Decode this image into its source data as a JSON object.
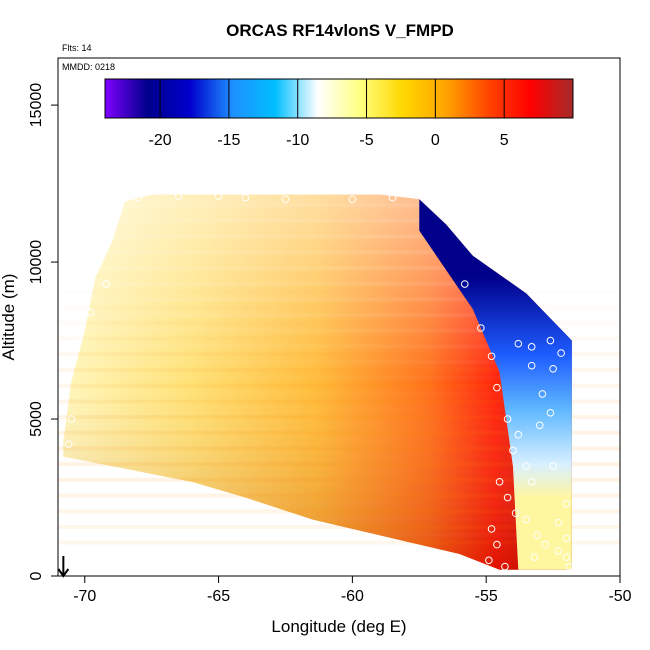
{
  "chart_data": {
    "type": "heatmap",
    "title": "ORCAS RF14vlonS V_FMPD",
    "annotations": {
      "flights": "Flts: 14",
      "date": "MMDD: 0218"
    },
    "xlabel": "Longitude (deg E)",
    "ylabel": "Altitude (m)",
    "xlim": [
      -71,
      -50
    ],
    "ylim": [
      0,
      16500
    ],
    "x_ticks": [
      -70,
      -65,
      -60,
      -55,
      -50
    ],
    "y_ticks": [
      0,
      5000,
      10000,
      15000
    ],
    "colorbar": {
      "range": [
        -24,
        10
      ],
      "ticks": [
        -20,
        -15,
        -10,
        -5,
        0,
        5
      ],
      "colors": [
        "#7f00ff",
        "#00008b",
        "#0000cd",
        "#1e90ff",
        "#00bfff",
        "#ffffff",
        "#ffff80",
        "#ffd700",
        "#ffa500",
        "#ff4500",
        "#ff0000",
        "#a52a2a"
      ]
    },
    "grid": false,
    "data_region": {
      "top_boundary": [
        [
          -68.2,
          12000
        ],
        [
          -67.5,
          12150
        ],
        [
          -59,
          12150
        ],
        [
          -57.5,
          12000
        ],
        [
          -56.5,
          11200
        ],
        [
          -55.5,
          10200
        ],
        [
          -53.5,
          9000
        ],
        [
          -51.8,
          7500
        ]
      ],
      "bottom_boundary": [
        [
          -70.8,
          3800
        ],
        [
          -69,
          3500
        ],
        [
          -66,
          3000
        ],
        [
          -64,
          2500
        ],
        [
          -61.5,
          1800
        ],
        [
          -58,
          1100
        ],
        [
          -56,
          700
        ],
        [
          -54.5,
          200
        ],
        [
          -51.8,
          200
        ]
      ],
      "cold_front_boundary": [
        [
          -57.5,
          11000
        ],
        [
          -55.5,
          8500
        ],
        [
          -54.5,
          6500
        ],
        [
          -54,
          3500
        ],
        [
          -53.8,
          200
        ]
      ]
    },
    "observation_points": [
      {
        "lon": -68.0,
        "alt": 12050
      },
      {
        "lon": -66.5,
        "alt": 12100
      },
      {
        "lon": -65.0,
        "alt": 12100
      },
      {
        "lon": -64.0,
        "alt": 12050
      },
      {
        "lon": -62.5,
        "alt": 12000
      },
      {
        "lon": -60.0,
        "alt": 12000
      },
      {
        "lon": -58.5,
        "alt": 12050
      },
      {
        "lon": -69.2,
        "alt": 9300
      },
      {
        "lon": -69.8,
        "alt": 8400
      },
      {
        "lon": -70.2,
        "alt": 7600
      },
      {
        "lon": -70.5,
        "alt": 5000
      },
      {
        "lon": -70.6,
        "alt": 4200
      },
      {
        "lon": -55.8,
        "alt": 9300
      },
      {
        "lon": -55.2,
        "alt": 7900
      },
      {
        "lon": -54.8,
        "alt": 7000
      },
      {
        "lon": -54.6,
        "alt": 6000
      },
      {
        "lon": -54.2,
        "alt": 5000
      },
      {
        "lon": -53.8,
        "alt": 4500
      },
      {
        "lon": -54.0,
        "alt": 4000
      },
      {
        "lon": -53.5,
        "alt": 3500
      },
      {
        "lon": -53.3,
        "alt": 3000
      },
      {
        "lon": -54.5,
        "alt": 3000
      },
      {
        "lon": -54.2,
        "alt": 2500
      },
      {
        "lon": -53.9,
        "alt": 2000
      },
      {
        "lon": -53.5,
        "alt": 1800
      },
      {
        "lon": -53.1,
        "alt": 1300
      },
      {
        "lon": -52.8,
        "alt": 1000
      },
      {
        "lon": -52.3,
        "alt": 800
      },
      {
        "lon": -52.0,
        "alt": 2300
      },
      {
        "lon": -52.3,
        "alt": 1700
      },
      {
        "lon": -52.0,
        "alt": 1200
      },
      {
        "lon": -54.8,
        "alt": 1500
      },
      {
        "lon": -54.6,
        "alt": 1000
      },
      {
        "lon": -54.9,
        "alt": 500
      },
      {
        "lon": -54.3,
        "alt": 300
      },
      {
        "lon": -53.2,
        "alt": 600
      },
      {
        "lon": -53.0,
        "alt": 4800
      },
      {
        "lon": -52.6,
        "alt": 5200
      },
      {
        "lon": -52.9,
        "alt": 5800
      },
      {
        "lon": -52.5,
        "alt": 6600
      },
      {
        "lon": -52.2,
        "alt": 7100
      },
      {
        "lon": -52.6,
        "alt": 7500
      },
      {
        "lon": -53.3,
        "alt": 7300
      },
      {
        "lon": -53.8,
        "alt": 7400
      },
      {
        "lon": -53.3,
        "alt": 6700
      },
      {
        "lon": -52.0,
        "alt": 600
      },
      {
        "lon": -51.9,
        "alt": 300
      },
      {
        "lon": -52.5,
        "alt": 3500
      }
    ],
    "aircraft_marker": {
      "lon": -70.8,
      "alt": 0
    }
  }
}
